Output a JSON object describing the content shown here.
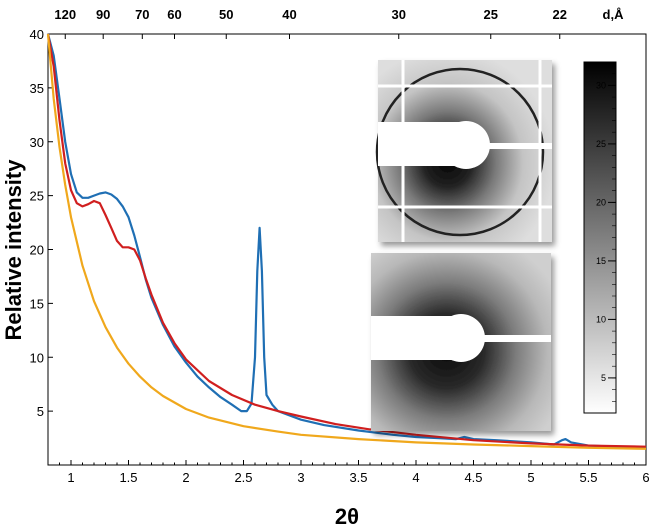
{
  "chart_data": {
    "type": "line",
    "xlabel": "2θ",
    "ylabel": "Relative intensity",
    "xlim": [
      0.8,
      6
    ],
    "ylim": [
      0,
      40
    ],
    "x_ticks": [
      1,
      1.5,
      2,
      2.5,
      3,
      3.5,
      4,
      4.5,
      5,
      5.5,
      6
    ],
    "x_tick_labels": [
      "1",
      "1.5",
      "2",
      "2.5",
      "3",
      "3.5",
      "4",
      "4.5",
      "5",
      "5.5",
      "6"
    ],
    "y_ticks": [
      5,
      10,
      15,
      20,
      25,
      30,
      35,
      40
    ],
    "y_tick_labels": [
      "5",
      "10",
      "15",
      "20",
      "25",
      "30",
      "35",
      "40"
    ],
    "top_axis": {
      "label": "d,Å",
      "ticks": [
        {
          "x": 0.95,
          "label": "120"
        },
        {
          "x": 1.28,
          "label": "90"
        },
        {
          "x": 1.62,
          "label": "70"
        },
        {
          "x": 1.9,
          "label": "60"
        },
        {
          "x": 2.35,
          "label": "50"
        },
        {
          "x": 2.9,
          "label": "40"
        },
        {
          "x": 3.85,
          "label": "30"
        },
        {
          "x": 4.65,
          "label": "25"
        },
        {
          "x": 5.25,
          "label": "22"
        }
      ]
    },
    "series": [
      {
        "color": "#1f6fb4",
        "points": [
          [
            0.8,
            40
          ],
          [
            0.85,
            38
          ],
          [
            0.9,
            34
          ],
          [
            0.95,
            30
          ],
          [
            1.0,
            27
          ],
          [
            1.05,
            25.3
          ],
          [
            1.1,
            24.8
          ],
          [
            1.15,
            24.8
          ],
          [
            1.2,
            25.0
          ],
          [
            1.25,
            25.2
          ],
          [
            1.3,
            25.3
          ],
          [
            1.35,
            25.1
          ],
          [
            1.4,
            24.7
          ],
          [
            1.45,
            24.0
          ],
          [
            1.5,
            23.0
          ],
          [
            1.55,
            21.3
          ],
          [
            1.6,
            19.3
          ],
          [
            1.65,
            17.2
          ],
          [
            1.7,
            15.5
          ],
          [
            1.8,
            13.0
          ],
          [
            1.9,
            11.0
          ],
          [
            2.0,
            9.5
          ],
          [
            2.1,
            8.2
          ],
          [
            2.2,
            7.2
          ],
          [
            2.3,
            6.3
          ],
          [
            2.4,
            5.6
          ],
          [
            2.48,
            5.0
          ],
          [
            2.53,
            5.0
          ],
          [
            2.57,
            5.7
          ],
          [
            2.6,
            10
          ],
          [
            2.62,
            18
          ],
          [
            2.64,
            22
          ],
          [
            2.66,
            18
          ],
          [
            2.68,
            10
          ],
          [
            2.7,
            6.5
          ],
          [
            2.75,
            5.6
          ],
          [
            2.8,
            5.0
          ],
          [
            3.0,
            4.2
          ],
          [
            3.2,
            3.7
          ],
          [
            3.5,
            3.2
          ],
          [
            3.8,
            2.8
          ],
          [
            4.0,
            2.6
          ],
          [
            4.2,
            2.5
          ],
          [
            4.35,
            2.4
          ],
          [
            4.42,
            2.6
          ],
          [
            4.5,
            2.4
          ],
          [
            4.7,
            2.3
          ],
          [
            5.0,
            2.1
          ],
          [
            5.2,
            1.9
          ],
          [
            5.27,
            2.3
          ],
          [
            5.3,
            2.4
          ],
          [
            5.35,
            2.1
          ],
          [
            5.5,
            1.8
          ],
          [
            6.0,
            1.6
          ]
        ]
      },
      {
        "color": "#d01f1f",
        "points": [
          [
            0.8,
            40
          ],
          [
            0.85,
            37
          ],
          [
            0.9,
            32
          ],
          [
            0.95,
            28
          ],
          [
            1.0,
            25.5
          ],
          [
            1.05,
            24.3
          ],
          [
            1.1,
            24.0
          ],
          [
            1.15,
            24.2
          ],
          [
            1.2,
            24.5
          ],
          [
            1.25,
            24.3
          ],
          [
            1.3,
            23.2
          ],
          [
            1.35,
            22.0
          ],
          [
            1.4,
            20.8
          ],
          [
            1.45,
            20.2
          ],
          [
            1.5,
            20.2
          ],
          [
            1.55,
            20.0
          ],
          [
            1.6,
            19.0
          ],
          [
            1.65,
            17.3
          ],
          [
            1.7,
            15.8
          ],
          [
            1.8,
            13.2
          ],
          [
            1.9,
            11.3
          ],
          [
            2.0,
            9.8
          ],
          [
            2.2,
            7.8
          ],
          [
            2.4,
            6.5
          ],
          [
            2.6,
            5.6
          ],
          [
            2.8,
            5.0
          ],
          [
            3.0,
            4.5
          ],
          [
            3.3,
            3.8
          ],
          [
            3.6,
            3.3
          ],
          [
            4.0,
            2.8
          ],
          [
            4.5,
            2.3
          ],
          [
            5.0,
            2.0
          ],
          [
            5.5,
            1.8
          ],
          [
            6.0,
            1.7
          ]
        ]
      },
      {
        "color": "#f0a81c",
        "points": [
          [
            0.8,
            40
          ],
          [
            0.85,
            34
          ],
          [
            0.9,
            29.5
          ],
          [
            0.95,
            26
          ],
          [
            1.0,
            23
          ],
          [
            1.1,
            18.5
          ],
          [
            1.2,
            15.2
          ],
          [
            1.3,
            12.8
          ],
          [
            1.4,
            10.9
          ],
          [
            1.5,
            9.4
          ],
          [
            1.6,
            8.2
          ],
          [
            1.7,
            7.2
          ],
          [
            1.8,
            6.4
          ],
          [
            2.0,
            5.2
          ],
          [
            2.2,
            4.4
          ],
          [
            2.5,
            3.6
          ],
          [
            2.8,
            3.1
          ],
          [
            3.0,
            2.8
          ],
          [
            3.5,
            2.4
          ],
          [
            4.0,
            2.1
          ],
          [
            4.5,
            1.9
          ],
          [
            5.0,
            1.75
          ],
          [
            5.5,
            1.6
          ],
          [
            6.0,
            1.5
          ]
        ]
      }
    ],
    "colorbar": {
      "range": [
        2,
        32
      ],
      "ticks": [
        5,
        10,
        15,
        20,
        25,
        30
      ]
    }
  }
}
